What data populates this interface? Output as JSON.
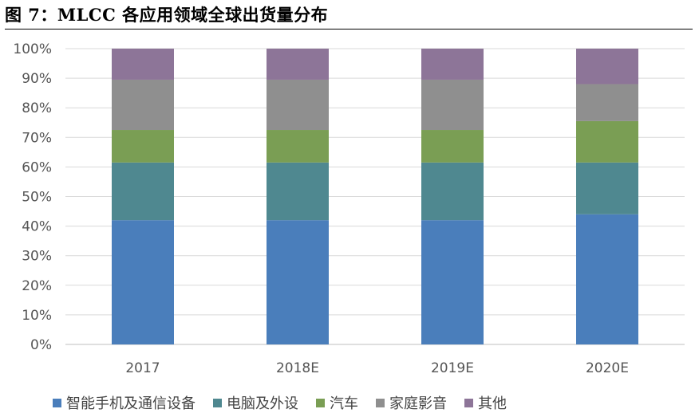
{
  "header": {
    "title": "图 7：MLCC 各应用领域全球出货量分布"
  },
  "chart_data": {
    "type": "bar",
    "stacked": true,
    "title": "",
    "xlabel": "",
    "ylabel": "",
    "ylim": [
      0,
      100
    ],
    "y_ticks": [
      "0%",
      "10%",
      "20%",
      "30%",
      "40%",
      "50%",
      "60%",
      "70%",
      "80%",
      "90%",
      "100%"
    ],
    "categories": [
      "2017",
      "2018E",
      "2019E",
      "2020E"
    ],
    "grid": true,
    "legend_position": "bottom",
    "series": [
      {
        "name": "智能手机及通信设备",
        "color": "#4a7ebb",
        "values": [
          42,
          42,
          42,
          44
        ]
      },
      {
        "name": "电脑及外设",
        "color": "#4f8890",
        "values": [
          19.5,
          19.5,
          19.5,
          17.5
        ]
      },
      {
        "name": "汽车",
        "color": "#7a9e54",
        "values": [
          11,
          11,
          11,
          14
        ]
      },
      {
        "name": "家庭影音",
        "color": "#8f8f8f",
        "values": [
          17,
          17,
          17,
          12.5
        ]
      },
      {
        "name": "其他",
        "color": "#8d7598",
        "values": [
          10.5,
          10.5,
          10.5,
          12
        ]
      }
    ]
  }
}
